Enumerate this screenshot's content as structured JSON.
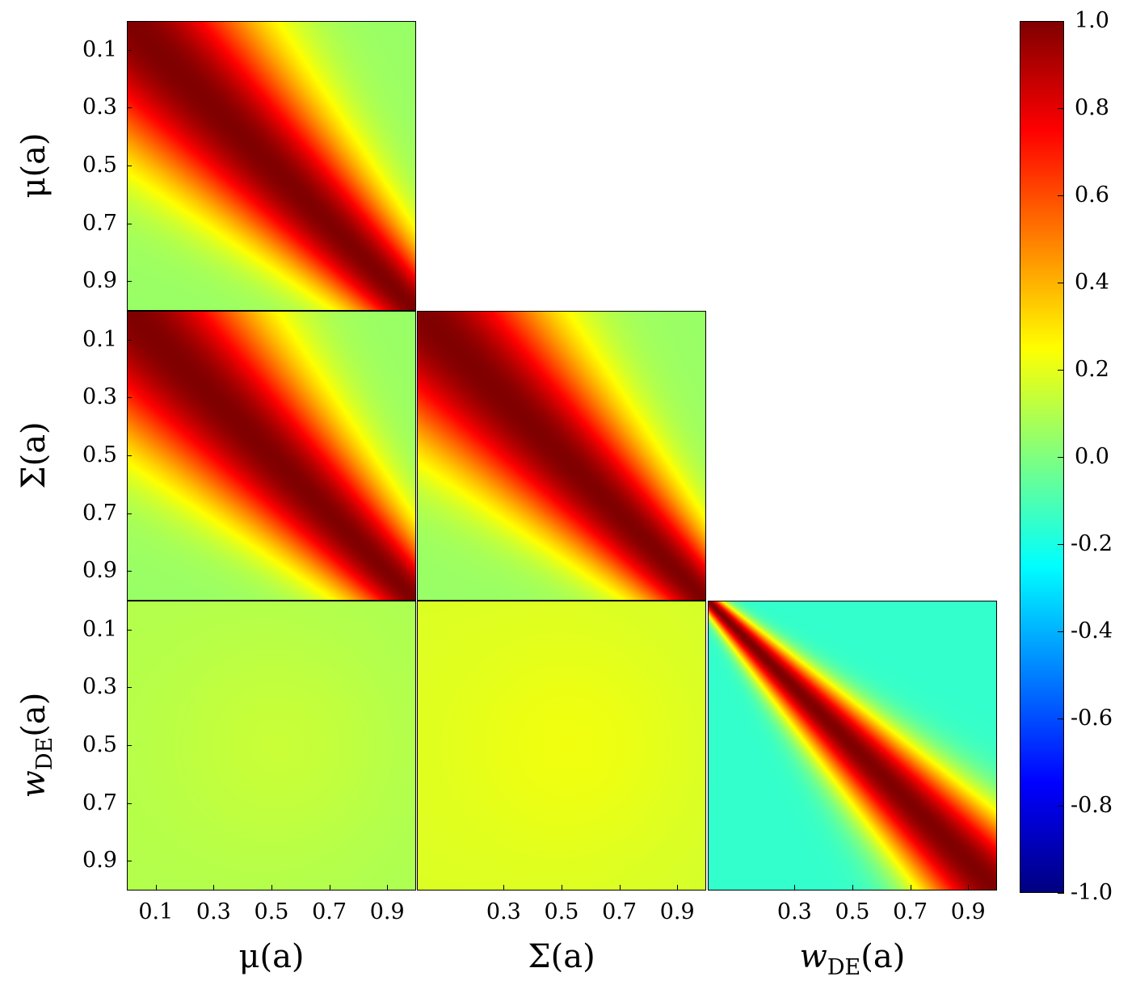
{
  "chart_data": {
    "type": "heatmap",
    "layout": "lower-triangular correlation matrix",
    "row_labels": [
      "μ(a)",
      "Σ(a)",
      "w_DE(a)"
    ],
    "col_labels": [
      "μ(a)",
      "Σ(a)",
      "w_DE(a)"
    ],
    "label_parts": [
      {
        "main": "μ(a)",
        "sub": ""
      },
      {
        "main": "Σ(a)",
        "sub": ""
      },
      {
        "main": "w",
        "sub": "DE",
        "tail": "(a)"
      }
    ],
    "axis_range": [
      0.0,
      1.0
    ],
    "ytick_labels": [
      "0.1",
      "0.3",
      "0.5",
      "0.7",
      "0.9"
    ],
    "xtick_labels": [
      [
        "0.1",
        "0.3",
        "0.5",
        "0.7",
        "0.9"
      ],
      [
        "0.3",
        "0.5",
        "0.7",
        "0.9"
      ],
      [
        "0.3",
        "0.5",
        "0.7",
        "0.9"
      ]
    ],
    "colorbar": {
      "colormap": "jet",
      "range": [
        -1.0,
        1.0
      ],
      "tick_labels": [
        "1.0",
        "0.8",
        "0.6",
        "0.4",
        "0.2",
        "0.0",
        "-0.2",
        "-0.4",
        "-0.6",
        "-0.8",
        "-1.0"
      ]
    },
    "blocks": [
      {
        "row": 0,
        "col": 0,
        "pattern": "diagonal",
        "diag": 1.0,
        "far_corner": 0.05
      },
      {
        "row": 1,
        "col": 0,
        "pattern": "diagonal",
        "diag": 1.0,
        "far_corner": 0.05
      },
      {
        "row": 1,
        "col": 1,
        "pattern": "diagonal",
        "diag": 1.0,
        "far_corner": 0.05
      },
      {
        "row": 2,
        "col": 0,
        "pattern": "flat",
        "level": 0.1
      },
      {
        "row": 2,
        "col": 1,
        "pattern": "flat",
        "level": 0.18
      },
      {
        "row": 2,
        "col": 2,
        "pattern": "narrow-diagonal",
        "diag": 1.0,
        "off": -0.15
      }
    ]
  }
}
